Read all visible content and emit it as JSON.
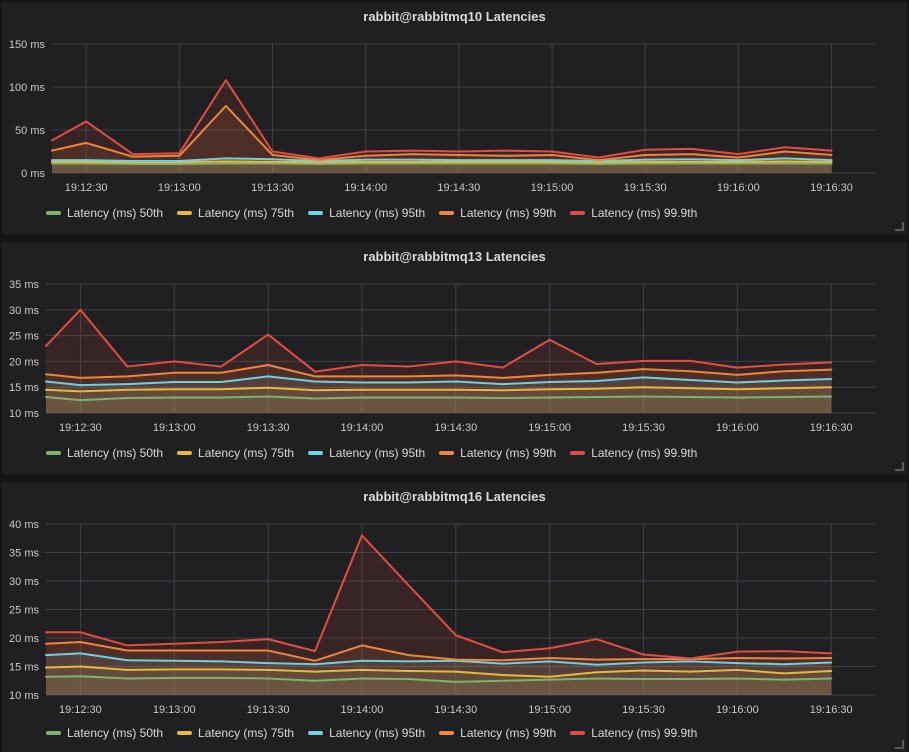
{
  "colors": {
    "body_background": "#151517",
    "panel_background": "#202023",
    "grid": "#3e4045",
    "title_text": "#d8d9da",
    "tick_text": "#c7c8c9",
    "legend_text": "#d8d9da",
    "series_green": "#7EB26D",
    "series_yellow": "#EAB839",
    "series_cyan": "#6ED0E0",
    "series_orange": "#EF843C",
    "series_red": "#E24D42"
  },
  "chart_data": [
    {
      "type": "area",
      "title": "rabbit@rabbitmq10 Latencies",
      "ylim": [
        0,
        150
      ],
      "grid": true,
      "legend_position": "bottom",
      "y_ticks": [
        {
          "v": 0,
          "label": "0 ms"
        },
        {
          "v": 50,
          "label": "50 ms"
        },
        {
          "v": 100,
          "label": "100 ms"
        },
        {
          "v": 150,
          "label": "150 ms"
        }
      ],
      "x_range_s": [
        0,
        265
      ],
      "x_ticks": [
        {
          "s": 11,
          "label": "19:12:30"
        },
        {
          "s": 41,
          "label": "19:13:00"
        },
        {
          "s": 71,
          "label": "19:13:30"
        },
        {
          "s": 101,
          "label": "19:14:00"
        },
        {
          "s": 131,
          "label": "19:14:30"
        },
        {
          "s": 161,
          "label": "19:15:00"
        },
        {
          "s": 191,
          "label": "19:15:30"
        },
        {
          "s": 221,
          "label": "19:16:00"
        },
        {
          "s": 251,
          "label": "19:16:30"
        }
      ],
      "x_points_s": [
        0,
        11,
        26,
        41,
        56,
        71,
        86,
        101,
        116,
        131,
        146,
        161,
        176,
        191,
        206,
        221,
        236,
        251
      ],
      "series": [
        {
          "name": "Latency (ms) 50th",
          "color": "#7EB26D",
          "values": [
            11,
            11,
            10.5,
            10.5,
            11,
            11,
            10.5,
            11,
            11,
            11,
            11,
            11,
            10.5,
            11,
            11,
            11,
            11,
            11
          ]
        },
        {
          "name": "Latency (ms) 75th",
          "color": "#EAB839",
          "values": [
            13,
            13,
            12.5,
            12.5,
            13.5,
            13,
            12.5,
            13,
            13,
            13,
            13,
            13,
            12.5,
            13,
            13,
            13,
            13.5,
            13
          ]
        },
        {
          "name": "Latency (ms) 95th",
          "color": "#6ED0E0",
          "values": [
            15,
            15,
            14,
            14,
            17,
            16,
            14,
            15.5,
            15.5,
            15,
            15,
            15,
            14,
            15.5,
            16,
            15,
            17,
            15
          ]
        },
        {
          "name": "Latency (ms) 99th",
          "color": "#EF843C",
          "values": [
            26,
            35,
            19,
            20,
            78,
            21,
            15,
            20,
            22,
            21,
            20,
            21,
            15,
            21,
            22,
            18,
            25,
            21
          ]
        },
        {
          "name": "Latency (ms) 99.9th",
          "color": "#E24D42",
          "values": [
            38,
            60,
            22,
            23,
            108,
            25,
            17,
            25,
            26,
            25,
            26,
            25,
            18,
            27,
            28,
            22,
            30,
            26
          ]
        }
      ]
    },
    {
      "type": "area",
      "title": "rabbit@rabbitmq13 Latencies",
      "ylim": [
        10,
        35
      ],
      "grid": true,
      "legend_position": "bottom",
      "y_ticks": [
        {
          "v": 10,
          "label": "10 ms"
        },
        {
          "v": 15,
          "label": "15 ms"
        },
        {
          "v": 20,
          "label": "20 ms"
        },
        {
          "v": 25,
          "label": "25 ms"
        },
        {
          "v": 30,
          "label": "30 ms"
        },
        {
          "v": 35,
          "label": "35 ms"
        }
      ],
      "x_range_s": [
        0,
        265
      ],
      "x_ticks": [
        {
          "s": 11,
          "label": "19:12:30"
        },
        {
          "s": 41,
          "label": "19:13:00"
        },
        {
          "s": 71,
          "label": "19:13:30"
        },
        {
          "s": 101,
          "label": "19:14:00"
        },
        {
          "s": 131,
          "label": "19:14:30"
        },
        {
          "s": 161,
          "label": "19:15:00"
        },
        {
          "s": 191,
          "label": "19:15:30"
        },
        {
          "s": 221,
          "label": "19:16:00"
        },
        {
          "s": 251,
          "label": "19:16:30"
        }
      ],
      "x_points_s": [
        0,
        11,
        26,
        41,
        56,
        71,
        86,
        101,
        116,
        131,
        146,
        161,
        176,
        191,
        206,
        221,
        236,
        251
      ],
      "series": [
        {
          "name": "Latency (ms) 50th",
          "color": "#7EB26D",
          "values": [
            13.1,
            12.5,
            12.9,
            13,
            13,
            13.2,
            12.8,
            13,
            13,
            13,
            12.9,
            13,
            13.1,
            13.2,
            13.1,
            13,
            13.1,
            13.2
          ]
        },
        {
          "name": "Latency (ms) 75th",
          "color": "#EAB839",
          "values": [
            14.5,
            14.2,
            14.5,
            14.6,
            14.6,
            14.9,
            14.4,
            14.5,
            14.5,
            14.5,
            14.4,
            14.6,
            14.7,
            15,
            14.8,
            14.6,
            14.8,
            15
          ]
        },
        {
          "name": "Latency (ms) 95th",
          "color": "#6ED0E0",
          "values": [
            16.1,
            15.4,
            15.6,
            16,
            16,
            17.1,
            16.1,
            15.9,
            15.9,
            16.1,
            15.6,
            16,
            16.2,
            16.9,
            16.4,
            15.9,
            16.3,
            16.6
          ]
        },
        {
          "name": "Latency (ms) 99th",
          "color": "#EF843C",
          "values": [
            17.5,
            16.8,
            17.1,
            17.8,
            17.8,
            19.3,
            17.1,
            17.1,
            17.1,
            17.3,
            16.8,
            17.4,
            17.8,
            18.5,
            18.1,
            17.4,
            18.1,
            18.4
          ]
        },
        {
          "name": "Latency (ms) 99.9th",
          "color": "#E24D42",
          "values": [
            23,
            30,
            19,
            20,
            19,
            25.2,
            18,
            19.3,
            19,
            20,
            18.8,
            24.2,
            19.5,
            20.1,
            20.1,
            18.8,
            19.4,
            19.8
          ]
        }
      ]
    },
    {
      "type": "area",
      "title": "rabbit@rabbitmq16 Latencies",
      "ylim": [
        10,
        40
      ],
      "grid": true,
      "legend_position": "bottom",
      "y_ticks": [
        {
          "v": 10,
          "label": "10 ms"
        },
        {
          "v": 15,
          "label": "15 ms"
        },
        {
          "v": 20,
          "label": "20 ms"
        },
        {
          "v": 25,
          "label": "25 ms"
        },
        {
          "v": 30,
          "label": "30 ms"
        },
        {
          "v": 35,
          "label": "35 ms"
        },
        {
          "v": 40,
          "label": "40 ms"
        }
      ],
      "x_range_s": [
        0,
        265
      ],
      "x_ticks": [
        {
          "s": 11,
          "label": "19:12:30"
        },
        {
          "s": 41,
          "label": "19:13:00"
        },
        {
          "s": 71,
          "label": "19:13:30"
        },
        {
          "s": 101,
          "label": "19:14:00"
        },
        {
          "s": 131,
          "label": "19:14:30"
        },
        {
          "s": 161,
          "label": "19:15:00"
        },
        {
          "s": 191,
          "label": "19:15:30"
        },
        {
          "s": 221,
          "label": "19:16:00"
        },
        {
          "s": 251,
          "label": "19:16:30"
        }
      ],
      "x_points_s": [
        0,
        11,
        26,
        41,
        56,
        71,
        86,
        101,
        116,
        131,
        146,
        161,
        176,
        191,
        206,
        221,
        236,
        251
      ],
      "series": [
        {
          "name": "Latency (ms) 50th",
          "color": "#7EB26D",
          "values": [
            13.2,
            13.3,
            12.9,
            13,
            13,
            12.9,
            12.5,
            12.9,
            12.8,
            12.3,
            12.5,
            12.7,
            12.9,
            12.8,
            12.8,
            12.9,
            12.7,
            12.9
          ]
        },
        {
          "name": "Latency (ms) 75th",
          "color": "#EAB839",
          "values": [
            14.8,
            15,
            14.4,
            14.5,
            14.5,
            14.4,
            14.1,
            14.4,
            14.2,
            14.1,
            13.5,
            13.2,
            14,
            14.3,
            14.1,
            14.4,
            13.8,
            14.2
          ]
        },
        {
          "name": "Latency (ms) 95th",
          "color": "#6ED0E0",
          "values": [
            17,
            17.3,
            16.1,
            16,
            15.9,
            15.6,
            15.4,
            16,
            15.9,
            16,
            15.5,
            15.9,
            15.3,
            15.7,
            15.9,
            15.6,
            15.4,
            15.7
          ]
        },
        {
          "name": "Latency (ms) 99th",
          "color": "#EF843C",
          "values": [
            19,
            19.3,
            17.8,
            17.8,
            17.8,
            17.8,
            16,
            18.7,
            17,
            16.2,
            16.1,
            16.5,
            16.2,
            16.3,
            16.3,
            16.5,
            16.4,
            16.5
          ]
        },
        {
          "name": "Latency (ms) 99.9th",
          "color": "#E24D42",
          "values": [
            21,
            21,
            18.7,
            19,
            19.3,
            19.8,
            17.7,
            38,
            29.2,
            20.5,
            17.5,
            18.2,
            19.8,
            17.1,
            16.4,
            17.6,
            17.7,
            17.3
          ]
        }
      ]
    }
  ]
}
